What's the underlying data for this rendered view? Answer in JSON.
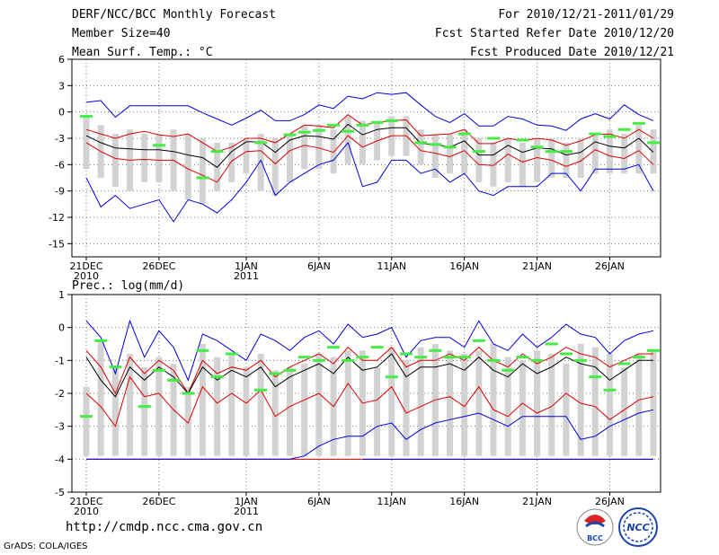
{
  "header": {
    "title": "DERF/NCC/BCC Monthly Forecast",
    "member_size": "Member Size=40",
    "variable_top": "Mean Surf. Temp.: °C",
    "fcst_period": "For 2010/12/21-2011/01/29",
    "fcst_refer": "Fcst Started Refer Date 2010/12/20",
    "fcst_produced": "Fcst Produced Date 2010/12/21"
  },
  "footer": {
    "url": "http://cmdp.ncc.cma.gov.cn",
    "credit": "GrADS: COLA/IGES",
    "logo1_text": "BCC",
    "logo2_text": "NCC"
  },
  "colors": {
    "envelope": "#0000dd",
    "spread": "#dd0000",
    "mean": "#000000",
    "marker": "#44ee44",
    "box": "#d2d2d2",
    "grid": "#777777"
  },
  "chart_data": [
    {
      "type": "box_plume",
      "title": "Mean Surf. Temp.: °C",
      "x_tick_labels": [
        {
          "day": 1,
          "line1": "21DEC",
          "line2": "2010"
        },
        {
          "day": 6,
          "line1": "26DEC",
          "line2": ""
        },
        {
          "day": 12,
          "line1": "1JAN",
          "line2": "2011"
        },
        {
          "day": 17,
          "line1": "6JAN",
          "line2": ""
        },
        {
          "day": 22,
          "line1": "11JAN",
          "line2": ""
        },
        {
          "day": 27,
          "line1": "16JAN",
          "line2": ""
        },
        {
          "day": 32,
          "line1": "21JAN",
          "line2": ""
        },
        {
          "day": 37,
          "line1": "26JAN",
          "line2": ""
        }
      ],
      "ylim": [
        -16.5,
        6
      ],
      "yticks": [
        6,
        3,
        0,
        -3,
        -6,
        -9,
        -12,
        -15
      ],
      "days": 40,
      "max": [
        1,
        1.2,
        -0.5,
        0.5,
        0.4,
        0.4,
        0.5,
        0.5,
        0.6,
        -0.5,
        -1.5,
        -1,
        -0.6,
        -1.5,
        -1.5,
        0.5,
        0.3,
        -0.5,
        1.6,
        1.5,
        1.2,
        2,
        2.2,
        -0.2,
        -1.5,
        -1.5,
        -0.5,
        -2.2,
        -2.5,
        -2.2,
        -2.5,
        -2,
        -1.8,
        -2.5,
        -1.8,
        -1,
        -0.5,
        -1.5,
        0.5,
        -0.6
      ],
      "box_top": [
        -0.5,
        -1.5,
        -2.5,
        -2,
        -2.5,
        -2.5,
        -2,
        -2.5,
        -3,
        -3.5,
        -3.5,
        -3,
        -2.5,
        -3,
        -2.5,
        -1.5,
        -1.5,
        -2,
        -0.5,
        -1,
        -1,
        -0.5,
        -0.5,
        -2,
        -2.5,
        -2.5,
        -2,
        -3,
        -3.5,
        -3,
        -3.5,
        -3,
        -3,
        -3.5,
        -3,
        -2.5,
        -2,
        -2.5,
        -1.5,
        -2
      ],
      "box_bottom": [
        -6.5,
        -7.5,
        -8.5,
        -9,
        -8,
        -8,
        -9,
        -10,
        -10.5,
        -9,
        -8,
        -7,
        -9,
        -9.5,
        -8,
        -6.5,
        -6.5,
        -7,
        -6,
        -6,
        -5.5,
        -5,
        -5,
        -6,
        -7.5,
        -7,
        -7,
        -8,
        -8.5,
        -8,
        -8.5,
        -8,
        -7.5,
        -7.5,
        -7.5,
        -7,
        -7,
        -7,
        -7,
        -7
      ],
      "ens_max": [
        1.1,
        1.3,
        -0.6,
        0.7,
        0.7,
        0.7,
        0.7,
        0.7,
        -0.1,
        -0.8,
        -1.5,
        -0.7,
        0.2,
        -1,
        -1,
        -0.3,
        0.8,
        0.4,
        1.8,
        1.5,
        2.2,
        2,
        2.2,
        0.8,
        -0.5,
        -1.2,
        -0.2,
        -1.6,
        -1.6,
        -0.5,
        -0.8,
        -1.5,
        -1.6,
        -2.1,
        -0.8,
        -0.2,
        -0.8,
        0.8,
        -0.3,
        -1
      ],
      "spread_hi": [
        -2,
        -2.5,
        -3,
        -2.5,
        -2.2,
        -2.6,
        -2.8,
        -2.5,
        -3.5,
        -4.5,
        -4,
        -3,
        -3,
        -3.5,
        -2.5,
        -1.5,
        -1.6,
        -1.8,
        -0.3,
        -1.5,
        -1.2,
        -1,
        -0.9,
        -2.7,
        -2.6,
        -2.5,
        -2,
        -3.6,
        -3.6,
        -3,
        -3.3,
        -3,
        -3.2,
        -3.8,
        -3.3,
        -2.6,
        -2.5,
        -3,
        -2,
        -3
      ],
      "mean": [
        -2.7,
        -3.5,
        -4.1,
        -4.2,
        -4.3,
        -4.3,
        -4.5,
        -4.9,
        -5.2,
        -6.3,
        -4.5,
        -3.4,
        -3.4,
        -4.6,
        -3.2,
        -2.7,
        -2.8,
        -3.1,
        -1.4,
        -2.6,
        -2,
        -1.8,
        -1.8,
        -3.6,
        -3.7,
        -4,
        -3.3,
        -4.9,
        -4.9,
        -3.8,
        -4.6,
        -4.1,
        -4.2,
        -4.9,
        -4.6,
        -3.4,
        -3.9,
        -4.1,
        -3,
        -4.6
      ],
      "spread_lo": [
        -3.5,
        -4.5,
        -5.3,
        -5.5,
        -5.4,
        -5.5,
        -5.5,
        -6.5,
        -7.2,
        -8,
        -5.6,
        -4.5,
        -4.4,
        -5.9,
        -4.4,
        -3.8,
        -4.1,
        -4.6,
        -2.7,
        -4,
        -3.3,
        -2.7,
        -2.7,
        -4.4,
        -4.7,
        -5.1,
        -4.4,
        -6,
        -6.1,
        -4.8,
        -5.7,
        -5.2,
        -5.5,
        -6.2,
        -5.6,
        -4.3,
        -5,
        -5.3,
        -4.4,
        -6
      ],
      "ens_min": [
        -7.5,
        -10.8,
        -9.5,
        -11,
        -10.5,
        -10,
        -12.5,
        -10,
        -10.5,
        -11.5,
        -10,
        -8,
        -5.5,
        -9.5,
        -8,
        -7,
        -6,
        -5.5,
        -3.5,
        -8.5,
        -8,
        -5.5,
        -5.5,
        -7,
        -6.5,
        -8,
        -7,
        -9,
        -9.5,
        -8.5,
        -8.5,
        -8.5,
        -7,
        -7,
        -9,
        -6.5,
        -6.5,
        -6.5,
        -6,
        -9
      ],
      "observed": [
        -0.5,
        null,
        null,
        null,
        null,
        -3.8,
        null,
        null,
        -7.5,
        -4.5,
        null,
        null,
        -3.5,
        null,
        -2.6,
        -2.3,
        -2.1,
        -1.5,
        -2.2,
        -1.5,
        -1.2,
        -1,
        null,
        -3.5,
        -3.7,
        -4,
        -2.5,
        -4.5,
        -3,
        null,
        -3.2,
        -4,
        -4.5,
        -4.5,
        null,
        -2.5,
        -2.8,
        -2,
        -1.3,
        -3.5
      ]
    },
    {
      "type": "box_plume",
      "title": "Prec.: log(mm/d)",
      "x_tick_labels": [
        {
          "day": 1,
          "line1": "21DEC",
          "line2": "2010"
        },
        {
          "day": 6,
          "line1": "26DEC",
          "line2": ""
        },
        {
          "day": 12,
          "line1": "1JAN",
          "line2": "2011"
        },
        {
          "day": 17,
          "line1": "6JAN",
          "line2": ""
        },
        {
          "day": 22,
          "line1": "11JAN",
          "line2": ""
        },
        {
          "day": 27,
          "line1": "16JAN",
          "line2": ""
        },
        {
          "day": 32,
          "line1": "21JAN",
          "line2": ""
        },
        {
          "day": 37,
          "line1": "26JAN",
          "line2": ""
        }
      ],
      "ylim": [
        -5,
        1
      ],
      "yticks": [
        1,
        0,
        -1,
        -2,
        -3,
        -4,
        -5
      ],
      "days": 40,
      "max": [
        -1.8,
        -0.4,
        -1.2,
        -0.8,
        -1.2,
        -0.9,
        -1.1,
        -1.8,
        -0.5,
        -0.9,
        -0.8,
        -1.2,
        -0.8,
        -1.3,
        -1.2,
        -1.1,
        -0.8,
        -0.9,
        -0.7,
        -0.7,
        -1.2,
        -0.6,
        -1,
        -0.6,
        -0.5,
        -0.7,
        -0.8,
        -0.7,
        -0.5,
        -0.9,
        -1,
        -0.7,
        -0.8,
        -1.1,
        -0.5,
        -0.6,
        -0.8,
        -1.2,
        -0.8,
        -0.7
      ],
      "box_top": [
        -1.8,
        -0.4,
        -1.2,
        -0.8,
        -1.2,
        -0.9,
        -1.1,
        -1.8,
        -0.5,
        -0.9,
        -0.8,
        -1.2,
        -0.8,
        -1.3,
        -1.2,
        -1.1,
        -0.8,
        -0.9,
        -0.7,
        -0.7,
        -1.2,
        -0.6,
        -1,
        -0.6,
        -0.5,
        -0.7,
        -0.8,
        -0.7,
        -0.5,
        -0.9,
        -1,
        -0.7,
        -0.8,
        -1.1,
        -0.5,
        -0.6,
        -0.8,
        -1.2,
        -0.8,
        -0.7
      ],
      "box_bottom": [
        -3.9,
        -3.9,
        -3.9,
        -3.9,
        -3.9,
        -3.9,
        -3.9,
        -3.9,
        -3.9,
        -3.9,
        -3.9,
        -3.9,
        -3.9,
        -3.9,
        -3.9,
        -3.9,
        -3.9,
        -3.9,
        -3.9,
        -3.9,
        -3.9,
        -3.9,
        -3.9,
        -3.9,
        -3.9,
        -3.9,
        -3.9,
        -3.9,
        -3.9,
        -3.9,
        -3.9,
        -3.9,
        -3.9,
        -3.9,
        -3.9,
        -3.9,
        -3.9,
        -3.9,
        -3.9,
        -3.9
      ],
      "ens_max": [
        0.2,
        -0.3,
        -1.4,
        0.2,
        -0.9,
        -0.1,
        -0.6,
        -1.6,
        -0.2,
        -0.4,
        -0.7,
        -1,
        -0.2,
        -0.4,
        -0.7,
        -0.3,
        -0.1,
        -0.5,
        0.1,
        -0.3,
        -0.2,
        0,
        -0.9,
        -0.4,
        -0.3,
        -0.3,
        -0.6,
        0.2,
        -0.5,
        -0.7,
        -0.2,
        -0.6,
        -0.3,
        0.1,
        -0.2,
        -0.3,
        -0.8,
        -0.4,
        -0.2,
        -0.1
      ],
      "spread_hi": [
        -0.7,
        -1.2,
        -2,
        -0.9,
        -1.4,
        -1,
        -1.3,
        -2,
        -1,
        -1.4,
        -1.2,
        -1.3,
        -1,
        -1.5,
        -1.2,
        -1,
        -0.8,
        -1.1,
        -0.6,
        -1,
        -1,
        -0.6,
        -1.2,
        -1,
        -1,
        -0.8,
        -1,
        -0.6,
        -1,
        -1.2,
        -0.8,
        -1.1,
        -0.9,
        -0.6,
        -0.8,
        -0.9,
        -1.2,
        -1,
        -0.8,
        -0.8
      ],
      "mean": [
        -0.9,
        -1.6,
        -2.1,
        -1.2,
        -1.6,
        -1.2,
        -1.5,
        -2,
        -1.2,
        -1.6,
        -1.3,
        -1.5,
        -1.2,
        -1.8,
        -1.5,
        -1.3,
        -1.1,
        -1.4,
        -0.9,
        -1.3,
        -1.2,
        -0.8,
        -1.5,
        -1.2,
        -1.2,
        -1.1,
        -1.3,
        -0.9,
        -1.3,
        -1.5,
        -1.1,
        -1.4,
        -1.2,
        -0.9,
        -1.1,
        -1.2,
        -1.6,
        -1.3,
        -1,
        -1
      ],
      "spread_lo": [
        -2,
        -2.4,
        -3,
        -1.5,
        -2.1,
        -2,
        -2.5,
        -2.9,
        -1.8,
        -2.3,
        -2,
        -2.3,
        -1.9,
        -2.7,
        -2.4,
        -2.2,
        -2,
        -2.4,
        -1.7,
        -2.3,
        -2.2,
        -1.8,
        -2.6,
        -2.4,
        -2.2,
        -2.1,
        -2.4,
        -1.8,
        -2.5,
        -2.7,
        -2.3,
        -2.6,
        -2.4,
        -2,
        -2.3,
        -2.4,
        -2.8,
        -2.5,
        -2.2,
        -2.1
      ],
      "ens_min": [
        -4,
        -4,
        -4,
        -4,
        -4,
        -4,
        -4,
        -4,
        -4,
        -4,
        -4,
        -4,
        -4,
        -4,
        -4,
        -3.9,
        -3.6,
        -3.4,
        -3.3,
        -3.3,
        -3,
        -2.9,
        -3.4,
        -3.1,
        -2.9,
        -2.8,
        -2.7,
        -2.6,
        -2.8,
        -3,
        -2.7,
        -2.7,
        -2.7,
        -2.7,
        -3.4,
        -3.3,
        -3,
        -2.8,
        -2.6,
        -2.5
      ],
      "zero_line": -4,
      "observed": [
        -2.7,
        -0.4,
        -1.2,
        null,
        -2.4,
        -1.3,
        -1.6,
        -2,
        -0.7,
        -1.5,
        -0.8,
        null,
        -1.9,
        -1.4,
        -1.3,
        -0.9,
        -1,
        -0.6,
        -1,
        -0.9,
        -0.6,
        -1.5,
        -0.8,
        -0.9,
        -0.7,
        -0.9,
        -0.9,
        -0.4,
        -1,
        -1.3,
        -0.9,
        -1,
        -0.5,
        -0.8,
        -1,
        -1.5,
        -1.9,
        -1.1,
        -0.9,
        -0.7
      ]
    }
  ]
}
